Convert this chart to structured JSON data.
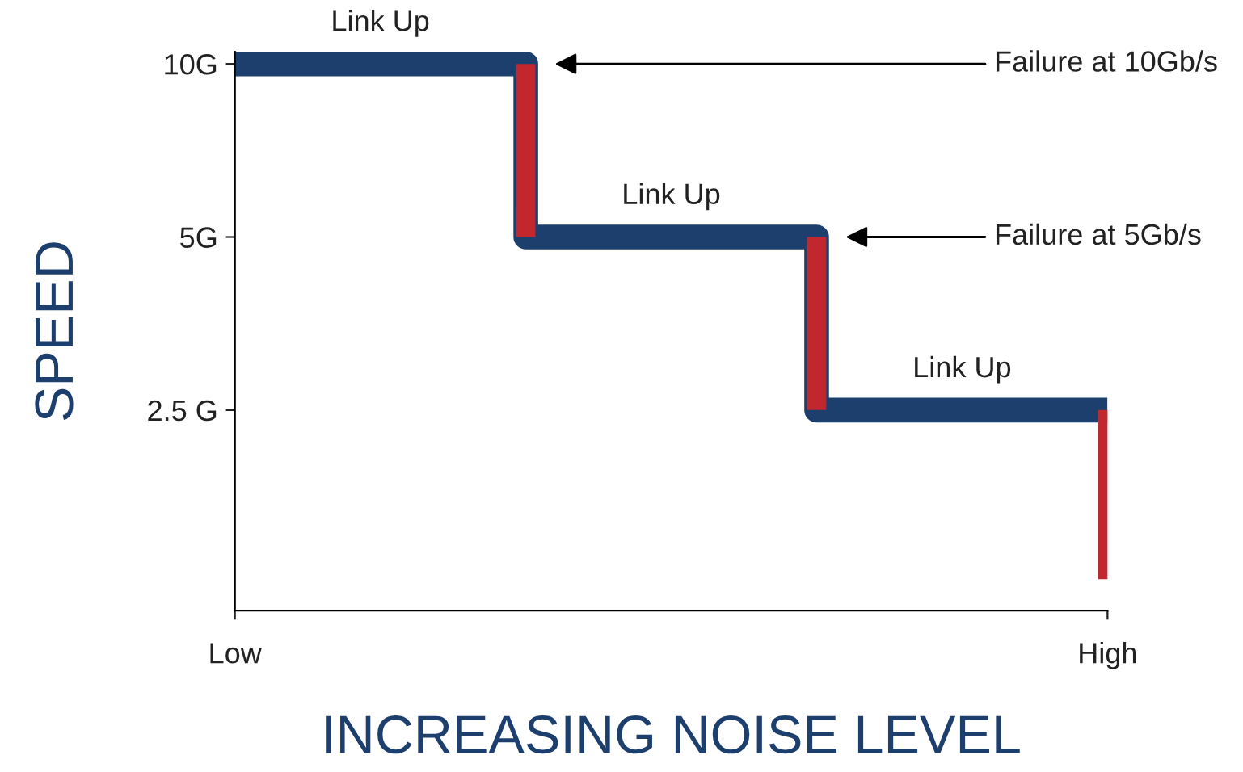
{
  "chart_data": {
    "type": "step",
    "xlabel": "INCREASING NOISE LEVEL",
    "ylabel": "SPEED",
    "log": "y",
    "categories": [
      "Low",
      null,
      null,
      "High"
    ],
    "ylim": [
      1.12,
      10.5
    ],
    "yticks": [
      {
        "value": 2.5,
        "label": "2.5 G"
      },
      {
        "value": 5,
        "label": "5G"
      },
      {
        "value": 10,
        "label": "10G"
      }
    ],
    "grid": false,
    "legend": false,
    "marker": "none",
    "line_style": "solid",
    "series": [
      {
        "color": "#1d3f6e",
        "values": [
          10,
          5,
          2.5,
          2.5
        ]
      },
      {
        "type": "bar",
        "color": "#c1272d",
        "values": [
          null,
          5,
          2.5,
          1.23
        ],
        "base": [
          null,
          5,
          2.5,
          1.27
        ]
      }
    ],
    "annotations": [
      "Link Up",
      "Link Up",
      "Link Up",
      "Failure at 10Gb/s",
      "Failure at 5Gb/s"
    ]
  }
}
